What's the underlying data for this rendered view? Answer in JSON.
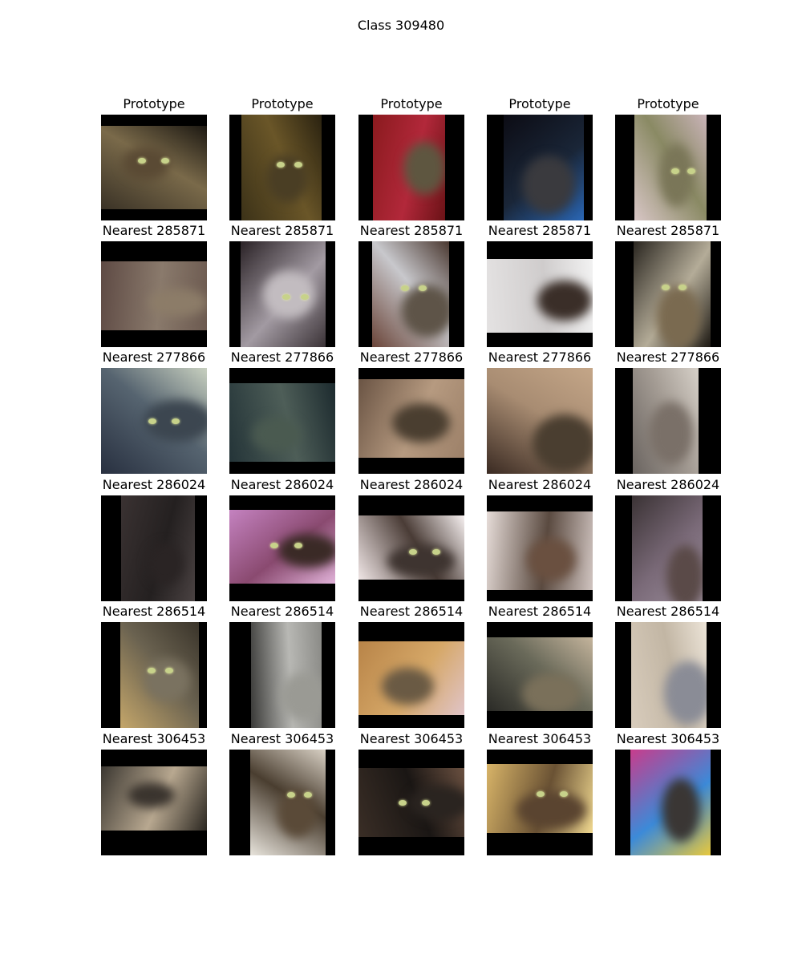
{
  "figure": {
    "title": "Class 309480"
  },
  "rows": [
    {
      "label": "Prototype",
      "cells": [
        {
          "icon": "cat-photo",
          "pad": "top-bottom",
          "bg": [
            "#3a3226",
            "#7a6a4a",
            "#1c1812"
          ],
          "tone": "#5a4a34",
          "eyes": true
        },
        {
          "icon": "cat-photo",
          "pad": "left-right",
          "bg": [
            "#3c3218",
            "#6a5628",
            "#2a2210"
          ],
          "tone": "#4a3e24",
          "eyes": true
        },
        {
          "icon": "cat-photo",
          "pad": "left-right",
          "bg": [
            "#8a1a1e",
            "#b2283a",
            "#6a1216"
          ],
          "tone": "#5e5640",
          "eyes": false
        },
        {
          "icon": "cat-photo",
          "pad": "left-right",
          "bg": [
            "#0c0c14",
            "#1a2638",
            "#2a66b4"
          ],
          "tone": "#3a3a3e",
          "eyes": false
        },
        {
          "icon": "cat-photo",
          "pad": "left-right",
          "bg": [
            "#d8c6c6",
            "#8a8a64",
            "#c9b3b8"
          ],
          "tone": "#7a7658",
          "eyes": true
        }
      ]
    },
    {
      "label": "Nearest 285871",
      "cells": [
        {
          "icon": "cat-photo",
          "pad": "top-bottom",
          "bg": [
            "#5e4a44",
            "#8a7a6c",
            "#6c5a50"
          ],
          "tone": "#8c7c68",
          "eyes": false
        },
        {
          "icon": "cat-photo",
          "pad": "left-right",
          "bg": [
            "#2a2226",
            "#a29aa2",
            "#3a3236"
          ],
          "tone": "#c2bcc0",
          "eyes": true
        },
        {
          "icon": "cat-photo",
          "pad": "left-right",
          "bg": [
            "#6a4438",
            "#c8c8cc",
            "#4a3830"
          ],
          "tone": "#5e5448",
          "eyes": true
        },
        {
          "icon": "cat-photo",
          "pad": "top-bottom",
          "bg": [
            "#e4e2e2",
            "#cfcccc",
            "#f2f2f2"
          ],
          "tone": "#3a2e28",
          "eyes": false
        },
        {
          "icon": "cat-photo",
          "pad": "left-right",
          "bg": [
            "#2a2620",
            "#b4ac98",
            "#1e1a14"
          ],
          "tone": "#7a6a50",
          "eyes": true
        }
      ]
    },
    {
      "label": "Nearest 277866",
      "cells": [
        {
          "icon": "cat-photo",
          "pad": "none",
          "bg": [
            "#283040",
            "#566470",
            "#c8d0c0"
          ],
          "tone": "#3c4650",
          "eyes": true
        },
        {
          "icon": "cat-photo",
          "pad": "top-bottom",
          "bg": [
            "#243438",
            "#4e5e58",
            "#1c2a2e"
          ],
          "tone": "#4a5a50",
          "eyes": false
        },
        {
          "icon": "cat-photo",
          "pad": "top-bottom",
          "bg": [
            "#6a5444",
            "#b69a80",
            "#9c8068"
          ],
          "tone": "#4a3e30",
          "eyes": false
        },
        {
          "icon": "cat-photo",
          "pad": "none",
          "bg": [
            "#3a2a22",
            "#a88c72",
            "#c4a688"
          ],
          "tone": "#4a3e30",
          "eyes": false
        },
        {
          "icon": "cat-photo",
          "pad": "left-right",
          "bg": [
            "#6a6460",
            "#a49c94",
            "#d6d0c8"
          ],
          "tone": "#7a7068",
          "eyes": false
        }
      ]
    },
    {
      "label": "Nearest 286024",
      "cells": [
        {
          "icon": "cat-photo",
          "pad": "left-right",
          "bg": [
            "#3a3232",
            "#242020",
            "#4a4242"
          ],
          "tone": "#2a2424",
          "eyes": false
        },
        {
          "icon": "cat-photo",
          "pad": "top-bottom",
          "bg": [
            "#c482c0",
            "#8a4a70",
            "#e0b2d8"
          ],
          "tone": "#3a2a26",
          "eyes": true
        },
        {
          "icon": "cat-photo",
          "pad": "top-bottom",
          "bg": [
            "#f0e6e6",
            "#4a3c36",
            "#f6f0f0"
          ],
          "tone": "#3e3430",
          "eyes": true
        },
        {
          "icon": "cat-photo",
          "pad": "top-bottom",
          "bg": [
            "#e6dcd8",
            "#5a4a40",
            "#d0c4c0"
          ],
          "tone": "#6a5040",
          "eyes": false
        },
        {
          "icon": "cat-photo",
          "pad": "left-right",
          "bg": [
            "#3a3234",
            "#7a6a78",
            "#9a8c9a"
          ],
          "tone": "#5a4a48",
          "eyes": false
        }
      ]
    },
    {
      "label": "Nearest 286514",
      "cells": [
        {
          "icon": "cat-photo",
          "pad": "left-right",
          "bg": [
            "#c4a66a",
            "#6a6250",
            "#3a342a"
          ],
          "tone": "#7a7260",
          "eyes": true
        },
        {
          "icon": "cat-photo",
          "pad": "left-right",
          "bg": [
            "#3a3a38",
            "#b8b8b4",
            "#8a8a86"
          ],
          "tone": "#9a9a94",
          "eyes": false
        },
        {
          "icon": "cat-photo",
          "pad": "top-bottom",
          "bg": [
            "#b88448",
            "#d6a868",
            "#e0c4c8"
          ],
          "tone": "#6a5a44",
          "eyes": false
        },
        {
          "icon": "cat-photo",
          "pad": "top-bottom",
          "bg": [
            "#2a2a26",
            "#6a6a5a",
            "#c4b49c"
          ],
          "tone": "#7a705a",
          "eyes": false
        },
        {
          "icon": "cat-photo",
          "pad": "left-right",
          "bg": [
            "#d8ccbc",
            "#c2b6a4",
            "#ece4d8"
          ],
          "tone": "#8a8c96",
          "eyes": false
        }
      ]
    },
    {
      "label": "Nearest 306453",
      "cells": [
        {
          "icon": "cat-photo",
          "pad": "top-bottom",
          "bg": [
            "#3a3630",
            "#b8a890",
            "#2a2620"
          ],
          "tone": "#3a342e",
          "eyes": false
        },
        {
          "icon": "cat-photo",
          "pad": "left-right",
          "bg": [
            "#e8e4dc",
            "#4a3e30",
            "#d8d0c4"
          ],
          "tone": "#5a4a38",
          "eyes": true
        },
        {
          "icon": "cat-photo",
          "pad": "top-bottom",
          "bg": [
            "#3a2e26",
            "#1a1614",
            "#6a5040"
          ],
          "tone": "#2a2420",
          "eyes": true
        },
        {
          "icon": "cat-photo",
          "pad": "top-bottom",
          "bg": [
            "#d8b468",
            "#6a5234",
            "#f0d890"
          ],
          "tone": "#5a4430",
          "eyes": true
        },
        {
          "icon": "cat-photo",
          "pad": "left-right",
          "bg": [
            "#c83c8c",
            "#3c8ad8",
            "#e8c83c"
          ],
          "tone": "#3a3634",
          "eyes": false
        }
      ]
    }
  ]
}
